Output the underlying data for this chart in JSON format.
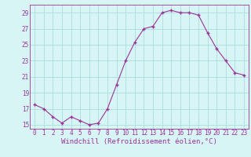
{
  "x": [
    0,
    1,
    2,
    3,
    4,
    5,
    6,
    7,
    8,
    9,
    10,
    11,
    12,
    13,
    14,
    15,
    16,
    17,
    18,
    19,
    20,
    21,
    22,
    23
  ],
  "y": [
    17.5,
    17.0,
    16.0,
    15.2,
    16.0,
    15.5,
    15.0,
    15.2,
    17.0,
    20.0,
    23.0,
    25.3,
    27.0,
    27.3,
    29.0,
    29.3,
    29.0,
    29.0,
    28.7,
    26.5,
    24.5,
    23.0,
    21.5,
    21.2
  ],
  "ylim": [
    14.5,
    30.0
  ],
  "xlim": [
    -0.5,
    23.5
  ],
  "yticks": [
    15,
    17,
    19,
    21,
    23,
    25,
    27,
    29
  ],
  "xticks": [
    0,
    1,
    2,
    3,
    4,
    5,
    6,
    7,
    8,
    9,
    10,
    11,
    12,
    13,
    14,
    15,
    16,
    17,
    18,
    19,
    20,
    21,
    22,
    23
  ],
  "xlabel": "Windchill (Refroidissement éolien,°C)",
  "line_color": "#993399",
  "marker_color": "#993399",
  "bg_color": "#d8f5f5",
  "grid_color": "#aadddd",
  "text_color": "#993399",
  "tick_fontsize": 5.5,
  "xlabel_fontsize": 6.5
}
